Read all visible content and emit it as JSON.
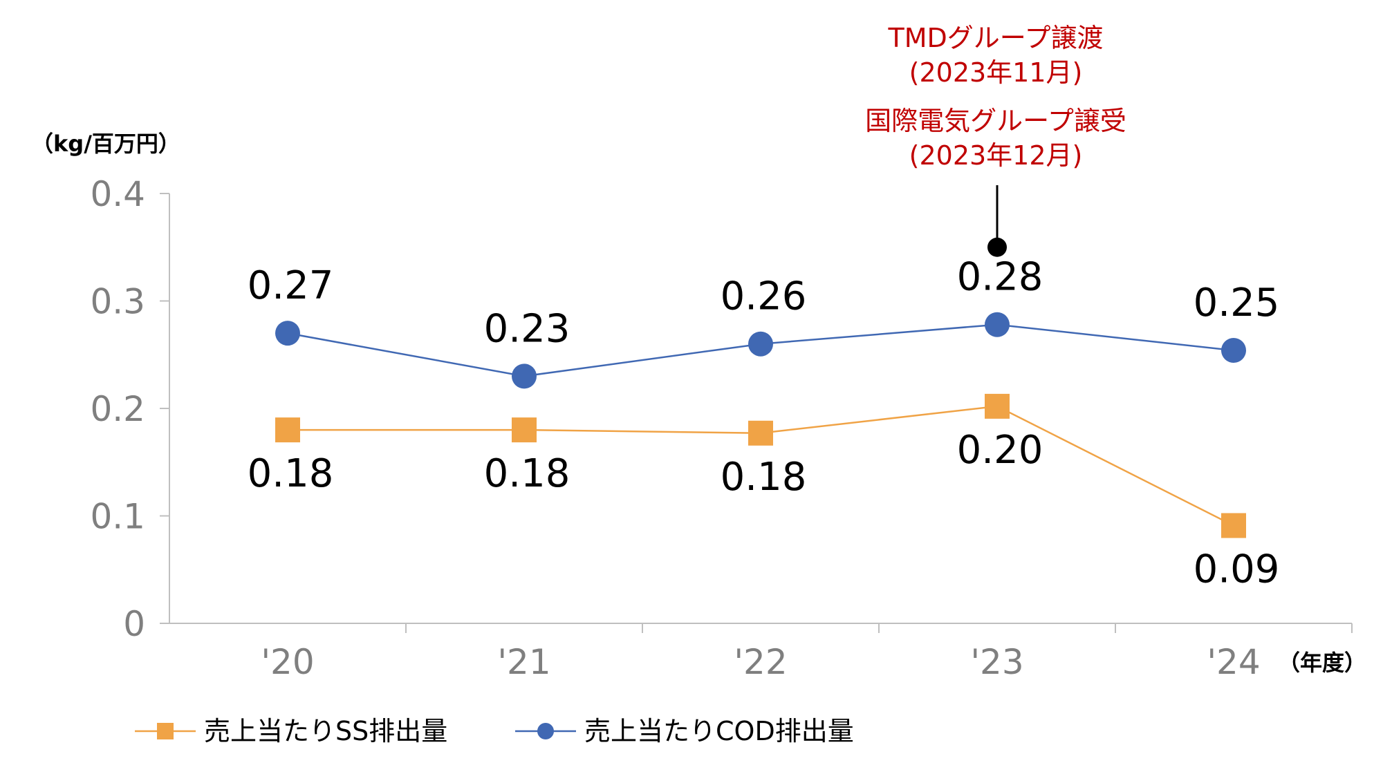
{
  "chart_data": {
    "type": "line",
    "ylabel": "（kg/百万円）",
    "xlabel": "（年度）",
    "categories": [
      "'20",
      "'21",
      "'22",
      "'23",
      "'24"
    ],
    "ylim": [
      0,
      0.4
    ],
    "yticks": [
      "0",
      "0.1",
      "0.2",
      "0.3",
      "0.4"
    ],
    "grid": false,
    "legend_position": "bottom-left",
    "series": [
      {
        "name": "売上当たりSS排出量",
        "marker": "square",
        "color": "#f0a346",
        "values": [
          0.18,
          0.18,
          0.177,
          0.202,
          0.091
        ],
        "labels": [
          "0.18",
          "0.18",
          "0.18",
          "0.20",
          "0.09"
        ]
      },
      {
        "name": "売上当たりCOD排出量",
        "marker": "circle",
        "color": "#4068b3",
        "values": [
          0.27,
          0.23,
          0.26,
          0.278,
          0.254
        ],
        "labels": [
          "0.27",
          "0.23",
          "0.26",
          "0.28",
          "0.25"
        ]
      }
    ],
    "annotation": {
      "category_index": 3,
      "marker_value": 0.35,
      "lines": [
        "TMDグループ譲渡",
        "(2023年11月)",
        "国際電気グループ譲受",
        "(2023年12月)"
      ]
    }
  }
}
